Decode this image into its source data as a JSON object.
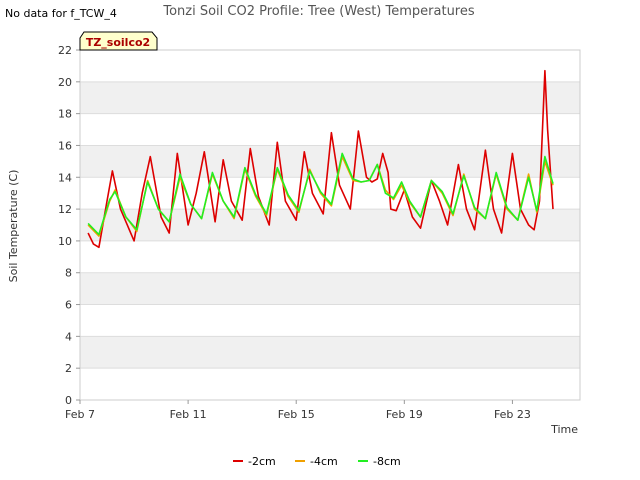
{
  "corner_note": "No data for f_TCW_4",
  "chart_data": {
    "type": "line",
    "title": "Tonzi Soil CO2 Profile: Tree (West) Temperatures",
    "xlabel": "Time",
    "ylabel": "Soil Temperature (C)",
    "ylim": [
      0,
      22
    ],
    "yticks": [
      0,
      2,
      4,
      6,
      8,
      10,
      12,
      14,
      16,
      18,
      20,
      22
    ],
    "xlim": [
      7,
      25.5
    ],
    "xtick_labels": [
      "Feb 7",
      "Feb 11",
      "Feb 15",
      "Feb 19",
      "Feb 23"
    ],
    "xtick_values": [
      7,
      11,
      15,
      19,
      23
    ],
    "grid": "horizontal bands",
    "badge": "TZ_soilco2",
    "legend_position": "bottom",
    "series": [
      {
        "name": "-2cm",
        "color": "#dd0000",
        "x": [
          7.3,
          7.5,
          7.7,
          8.0,
          8.2,
          8.5,
          9.0,
          9.3,
          9.6,
          10.0,
          10.3,
          10.6,
          11.0,
          11.3,
          11.6,
          12.0,
          12.3,
          12.6,
          13.0,
          13.3,
          13.6,
          14.0,
          14.3,
          14.6,
          15.0,
          15.3,
          15.6,
          16.0,
          16.3,
          16.6,
          17.0,
          17.3,
          17.6,
          17.8,
          18.0,
          18.2,
          18.4,
          18.5,
          18.7,
          19.0,
          19.3,
          19.6,
          20.0,
          20.3,
          20.6,
          21.0,
          21.3,
          21.6,
          22.0,
          22.3,
          22.6,
          23.0,
          23.3,
          23.6,
          23.8,
          24.0,
          24.2,
          24.3,
          24.5
        ],
        "y": [
          10.5,
          9.8,
          9.6,
          12.5,
          14.4,
          12.0,
          10.0,
          13.0,
          15.3,
          11.5,
          10.5,
          15.5,
          11.0,
          13.0,
          15.6,
          11.2,
          15.1,
          12.5,
          11.3,
          15.8,
          12.8,
          11.0,
          16.2,
          12.5,
          11.3,
          15.6,
          13.0,
          11.7,
          16.8,
          13.5,
          12.0,
          16.9,
          14.0,
          13.7,
          13.9,
          15.5,
          14.3,
          12.0,
          11.9,
          13.2,
          11.5,
          10.8,
          13.8,
          12.5,
          11.0,
          14.8,
          12.0,
          10.7,
          15.7,
          12.0,
          10.5,
          15.5,
          12.0,
          11.0,
          10.7,
          12.5,
          20.7,
          17.0,
          12.0
        ]
      },
      {
        "name": "-4cm",
        "color": "#f0a000",
        "x": [
          7.3,
          7.7,
          8.1,
          8.3,
          8.7,
          9.1,
          9.5,
          9.9,
          10.3,
          10.7,
          11.1,
          11.5,
          11.9,
          12.3,
          12.7,
          13.1,
          13.5,
          13.9,
          14.3,
          14.7,
          15.1,
          15.5,
          15.9,
          16.3,
          16.7,
          17.1,
          17.4,
          17.7,
          18.0,
          18.3,
          18.6,
          18.9,
          19.2,
          19.6,
          20.0,
          20.4,
          20.8,
          21.2,
          21.6,
          22.0,
          22.4,
          22.8,
          23.2,
          23.6,
          23.9,
          24.2,
          24.5
        ],
        "y": [
          11.0,
          10.3,
          12.5,
          13.2,
          11.5,
          10.6,
          13.8,
          12.0,
          11.2,
          14.0,
          12.3,
          11.4,
          14.2,
          12.5,
          11.4,
          14.5,
          12.8,
          11.6,
          14.5,
          12.8,
          11.8,
          14.5,
          13.0,
          12.2,
          15.3,
          13.8,
          13.7,
          13.8,
          14.8,
          13.2,
          12.6,
          13.5,
          12.4,
          11.5,
          13.8,
          13.0,
          11.6,
          14.2,
          12.0,
          11.4,
          14.2,
          12.0,
          11.3,
          14.2,
          11.8,
          15.0,
          13.5
        ]
      },
      {
        "name": "-8cm",
        "color": "#22ee22",
        "x": [
          7.3,
          7.7,
          8.1,
          8.3,
          8.7,
          9.1,
          9.5,
          9.9,
          10.3,
          10.7,
          11.1,
          11.5,
          11.9,
          12.3,
          12.7,
          13.1,
          13.5,
          13.9,
          14.3,
          14.7,
          15.1,
          15.5,
          15.9,
          16.3,
          16.7,
          17.1,
          17.4,
          17.7,
          18.0,
          18.3,
          18.6,
          18.9,
          19.2,
          19.6,
          20.0,
          20.4,
          20.8,
          21.2,
          21.6,
          22.0,
          22.4,
          22.8,
          23.2,
          23.6,
          23.9,
          24.2,
          24.5
        ],
        "y": [
          11.1,
          10.4,
          12.6,
          13.1,
          11.5,
          10.7,
          13.7,
          12.0,
          11.2,
          14.2,
          12.3,
          11.4,
          14.3,
          12.5,
          11.5,
          14.6,
          12.9,
          11.7,
          14.6,
          12.9,
          11.9,
          14.4,
          13.1,
          12.3,
          15.5,
          13.9,
          13.7,
          13.8,
          14.8,
          13.0,
          12.7,
          13.7,
          12.5,
          11.5,
          13.8,
          13.1,
          11.7,
          14.1,
          12.1,
          11.4,
          14.3,
          12.1,
          11.3,
          14.0,
          11.9,
          15.3,
          13.6
        ]
      }
    ]
  }
}
